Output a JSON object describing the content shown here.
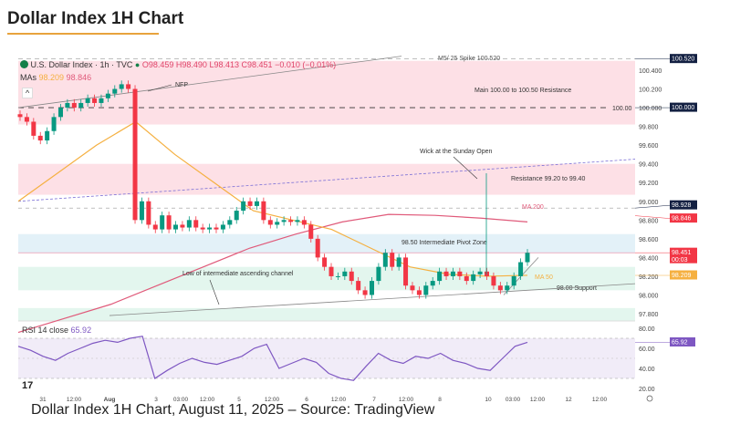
{
  "page": {
    "title": "Dollar Index 1H Chart",
    "caption": "Dollar Index 1H Chart, August 11, 2025 – Source: TradingView"
  },
  "legend": {
    "symbol": "U.S. Dollar Index · 1h · TVC",
    "o": "O98.459",
    "h": "H98.490",
    "l": "L98.413",
    "c": "C98.451",
    "change": "−0.010 (−0.01%)",
    "mas_label": "MAs",
    "ma50_val": "98.209",
    "ma200_val": "98.846",
    "collapse": "^"
  },
  "colors": {
    "up": "#089981",
    "down": "#f23645",
    "ma50": "#f5b041",
    "ma200": "#e05a7a",
    "resistance": "#fde0e6",
    "pivot": "#e3f1f8",
    "support": "#e3f6ee",
    "rsi": "#7e57c2"
  },
  "chart_data": {
    "type": "candlestick",
    "y_ticks": [
      "100.400",
      "100.200",
      "100.000",
      "99.800",
      "99.600",
      "99.400",
      "99.200",
      "99.000",
      "98.800",
      "98.600",
      "98.400",
      "98.200",
      "98.000",
      "97.800"
    ],
    "y_tick_values": [
      100.4,
      100.2,
      100.0,
      99.8,
      99.6,
      99.4,
      99.2,
      99.0,
      98.8,
      98.6,
      98.4,
      98.2,
      98.0,
      97.8
    ],
    "ylim": [
      97.7,
      100.55
    ],
    "x_ticks": [
      "31",
      "12:00",
      "Aug",
      "3",
      "03:00",
      "12:00",
      "5",
      "12:00",
      "6",
      "12:00",
      "7",
      "12:00",
      "8",
      "10",
      "03:00",
      "12:00",
      "12",
      "12:00"
    ],
    "closes": [
      99.9,
      99.85,
      99.7,
      99.65,
      99.75,
      99.9,
      100.0,
      100.05,
      100.0,
      100.05,
      100.1,
      100.05,
      100.1,
      100.15,
      100.2,
      100.25,
      100.2,
      98.8,
      99.0,
      98.75,
      98.7,
      98.85,
      98.7,
      98.75,
      98.72,
      98.8,
      98.72,
      98.7,
      98.72,
      98.7,
      98.75,
      98.8,
      98.9,
      99.0,
      98.95,
      99.0,
      98.8,
      98.75,
      98.78,
      98.8,
      98.78,
      98.8,
      98.75,
      98.6,
      98.4,
      98.3,
      98.2,
      98.2,
      98.25,
      98.15,
      98.05,
      98.0,
      98.15,
      98.3,
      98.45,
      98.3,
      98.4,
      98.1,
      98.05,
      98.0,
      98.1,
      98.15,
      98.25,
      98.2,
      98.25,
      98.2,
      98.15,
      98.22,
      98.25,
      98.2,
      98.1,
      98.05,
      98.1,
      98.2,
      98.35,
      98.45
    ],
    "ma50": [
      99.0,
      99.3,
      99.6,
      99.85,
      99.5,
      99.2,
      98.9,
      98.8,
      98.7,
      98.5,
      98.3,
      98.22,
      98.2,
      98.21
    ],
    "ma200": [
      97.6,
      97.75,
      97.9,
      98.1,
      98.3,
      98.5,
      98.65,
      98.78,
      98.86,
      98.85,
      98.82,
      98.78
    ],
    "rsi": [
      62,
      58,
      52,
      48,
      55,
      60,
      65,
      68,
      66,
      70,
      72,
      30,
      38,
      45,
      50,
      46,
      44,
      48,
      52,
      60,
      64,
      40,
      45,
      50,
      46,
      35,
      30,
      28,
      42,
      55,
      48,
      45,
      52,
      50,
      55,
      48,
      45,
      40,
      38,
      50,
      62,
      65.92
    ],
    "rsi_ticks": [
      "80.00",
      "60.00",
      "40.00",
      "20.00"
    ],
    "rsi_tick_values": [
      80,
      60,
      40,
      20
    ],
    "zones": [
      {
        "label": "Main 100.00 to 100.50 Resistance",
        "from": 99.82,
        "to": 100.5,
        "kind": "resistance"
      },
      {
        "label": "Resistance 99.20 to 99.40",
        "from": 99.07,
        "to": 99.4,
        "kind": "resistance"
      },
      {
        "label": "98.50 Intermediate Pivot Zone",
        "from": 98.45,
        "to": 98.65,
        "kind": "pivot"
      },
      {
        "label": "98.00 Support",
        "from": 98.05,
        "to": 98.3,
        "kind": "support"
      },
      {
        "label": "",
        "from": 97.72,
        "to": 97.86,
        "kind": "support"
      }
    ],
    "annotations": [
      "NFP",
      "Wick at the Sunday Open",
      "Low of intermediate ascending channel",
      "MA 200",
      "MA 50",
      "M5/ 25 Spike 100.520"
    ],
    "price_labels": [
      {
        "text": "100.520",
        "bg": "#132042"
      },
      {
        "text": "100.000",
        "bg": "#132042"
      },
      {
        "text": "98.928",
        "bg": "#132042"
      },
      {
        "text": "98.846",
        "bg": "#f23645"
      },
      {
        "text": "98.451",
        "bg": "#f23645"
      },
      {
        "text": "98.209",
        "bg": "#f5b041"
      }
    ],
    "countdown": "00:03",
    "rsi_label": "RSI 14 close",
    "rsi_value": "65.92",
    "hline_100": "100.00"
  }
}
